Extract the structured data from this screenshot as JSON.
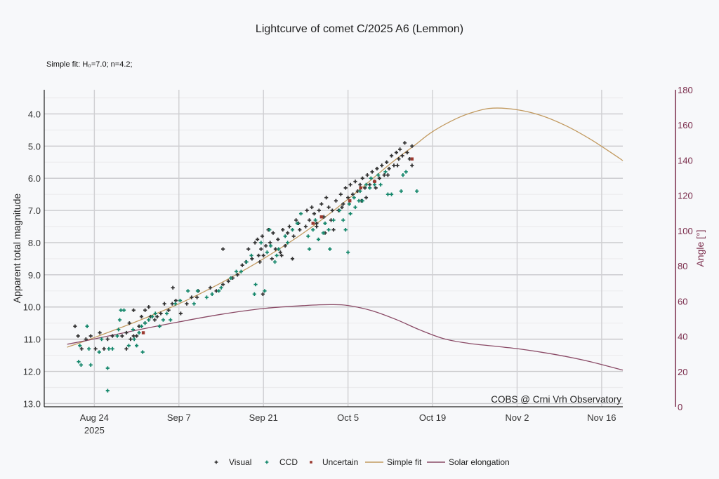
{
  "chart_data": {
    "type": "scatter",
    "title": "Lightcurve of comet C/2025 A6 (Lemmon)",
    "subtitle": "Simple fit: H₀=7.0; n=4.2;",
    "credit": "COBS @ Crni Vrh Observatory",
    "xlabel": "",
    "ylabel": "Apparent total magnitude",
    "y2label": "Angle [°]",
    "x_origin": "2025-08-24",
    "x_unit": "days since Aug 24 2025",
    "xlim_days": [
      -8.3,
      87.5
    ],
    "x_ticks": [
      {
        "day": 0,
        "label": "Aug 24",
        "sublabel": "2025"
      },
      {
        "day": 14,
        "label": "Sep 7"
      },
      {
        "day": 28,
        "label": "Sep 21"
      },
      {
        "day": 42,
        "label": "Oct 5"
      },
      {
        "day": 56,
        "label": "Oct 19"
      },
      {
        "day": 70,
        "label": "Nov 2"
      },
      {
        "day": 84,
        "label": "Nov 16"
      }
    ],
    "ylim": [
      13.1,
      3.25
    ],
    "y_inverted": true,
    "y_ticks": [
      "4.0",
      "5.0",
      "6.0",
      "7.0",
      "8.0",
      "9.0",
      "10.0",
      "11.0",
      "12.0",
      "13.0"
    ],
    "y2lim": [
      0,
      180
    ],
    "y2_ticks": [
      "0",
      "20",
      "40",
      "60",
      "80",
      "100",
      "120",
      "140",
      "160",
      "180"
    ],
    "grid": true,
    "legend_position": "bottom-center",
    "legend": [
      {
        "name": "Visual",
        "kind": "marker",
        "color": "#333333"
      },
      {
        "name": "CCD",
        "kind": "marker",
        "color": "#14876b"
      },
      {
        "name": "Uncertain",
        "kind": "marker",
        "color": "#9b3a30"
      },
      {
        "name": "Simple fit",
        "kind": "line",
        "color": "#c29a60"
      },
      {
        "name": "Solar elongation",
        "kind": "line",
        "color": "#8a4a66"
      }
    ],
    "series": [
      {
        "name": "Visual",
        "color": "#333333",
        "points": [
          [
            -3.2,
            10.6
          ],
          [
            -2.7,
            10.9
          ],
          [
            -2.1,
            11.3
          ],
          [
            -1.4,
            11.0
          ],
          [
            -0.6,
            10.9
          ],
          [
            0.2,
            11.3
          ],
          [
            0.9,
            10.8
          ],
          [
            1.6,
            11.3
          ],
          [
            2.2,
            11.0
          ],
          [
            3.0,
            10.9
          ],
          [
            4.6,
            10.9
          ],
          [
            5.3,
            10.8
          ],
          [
            5.3,
            11.3
          ],
          [
            5.8,
            10.5
          ],
          [
            6.0,
            11.0
          ],
          [
            6.5,
            10.1
          ],
          [
            6.5,
            10.9
          ],
          [
            7.0,
            10.9
          ],
          [
            7.4,
            10.6
          ],
          [
            7.8,
            10.3
          ],
          [
            8.4,
            10.1
          ],
          [
            8.4,
            10.5
          ],
          [
            9.0,
            10.0
          ],
          [
            9.3,
            10.3
          ],
          [
            10.0,
            10.4
          ],
          [
            10.4,
            10.3
          ],
          [
            11.0,
            10.2
          ],
          [
            11.6,
            9.9
          ],
          [
            12.3,
            10.1
          ],
          [
            12.9,
            9.9
          ],
          [
            13.0,
            9.4
          ],
          [
            13.5,
            9.8
          ],
          [
            14.3,
            10.2
          ],
          [
            15.3,
            9.9
          ],
          [
            16.1,
            9.7
          ],
          [
            17.0,
            9.7
          ],
          [
            17.2,
            9.5
          ],
          [
            19.2,
            9.4
          ],
          [
            20.2,
            9.5
          ],
          [
            21.3,
            9.3
          ],
          [
            21.3,
            8.2
          ],
          [
            22.2,
            9.2
          ],
          [
            22.9,
            9.1
          ],
          [
            23.7,
            9.0
          ],
          [
            24.5,
            8.7
          ],
          [
            25.1,
            8.6
          ],
          [
            25.5,
            8.2
          ],
          [
            26.1,
            8.5
          ],
          [
            26.6,
            8.0
          ],
          [
            27.0,
            7.9
          ],
          [
            27.2,
            8.4
          ],
          [
            27.4,
            8.6
          ],
          [
            27.6,
            8.2
          ],
          [
            27.8,
            7.8
          ],
          [
            28.4,
            8.1
          ],
          [
            28.8,
            7.6
          ],
          [
            29.1,
            8.0
          ],
          [
            29.4,
            8.5
          ],
          [
            29.6,
            7.7
          ],
          [
            30.0,
            8.2
          ],
          [
            30.4,
            7.9
          ],
          [
            30.8,
            8.3
          ],
          [
            31.2,
            7.6
          ],
          [
            31.6,
            8.1
          ],
          [
            32.0,
            7.7
          ],
          [
            32.3,
            7.5
          ],
          [
            33.0,
            7.8
          ],
          [
            33.4,
            7.3
          ],
          [
            34.0,
            7.6
          ],
          [
            35.2,
            7.0
          ],
          [
            35.6,
            7.3
          ],
          [
            36.0,
            6.9
          ],
          [
            36.4,
            7.1
          ],
          [
            36.8,
            7.4
          ],
          [
            37.2,
            7.0
          ],
          [
            37.6,
            6.8
          ],
          [
            38.0,
            7.2
          ],
          [
            38.4,
            6.6
          ],
          [
            38.8,
            6.9
          ],
          [
            39.2,
            7.3
          ],
          [
            39.6,
            7.6
          ],
          [
            40.0,
            6.7
          ],
          [
            40.4,
            7.0
          ],
          [
            40.8,
            6.5
          ],
          [
            41.2,
            6.8
          ],
          [
            41.6,
            6.3
          ],
          [
            42.0,
            6.6
          ],
          [
            42.4,
            6.2
          ],
          [
            42.8,
            6.5
          ],
          [
            43.2,
            6.1
          ],
          [
            43.6,
            6.4
          ],
          [
            44.0,
            6.2
          ],
          [
            44.4,
            6.0
          ],
          [
            44.8,
            6.3
          ],
          [
            45.2,
            5.9
          ],
          [
            45.6,
            6.2
          ],
          [
            46.0,
            5.8
          ],
          [
            46.4,
            6.1
          ],
          [
            46.8,
            5.7
          ],
          [
            47.2,
            6.0
          ],
          [
            47.6,
            5.6
          ],
          [
            48.0,
            5.9
          ],
          [
            48.4,
            5.5
          ],
          [
            48.8,
            5.7
          ],
          [
            49.2,
            5.3
          ],
          [
            49.6,
            5.6
          ],
          [
            50.0,
            5.2
          ],
          [
            50.4,
            5.4
          ],
          [
            50.6,
            5.1
          ],
          [
            51.0,
            5.3
          ],
          [
            51.4,
            4.9
          ],
          [
            51.8,
            5.2
          ],
          [
            52.2,
            5.4
          ],
          [
            52.6,
            5.0
          ],
          [
            52.6,
            5.6
          ],
          [
            36.8,
            7.5
          ],
          [
            35.0,
            7.5
          ],
          [
            33.8,
            7.4
          ],
          [
            32.8,
            8.5
          ],
          [
            31.0,
            8.4
          ],
          [
            28.0,
            8.4
          ],
          [
            27.9,
            9.6
          ],
          [
            44.2,
            6.7
          ],
          [
            45.0,
            6.6
          ],
          [
            46.6,
            6.3
          ],
          [
            48.6,
            5.9
          ],
          [
            50.2,
            5.6
          ],
          [
            39.4,
            7.0
          ],
          [
            38.2,
            7.7
          ],
          [
            41.0,
            6.9
          ]
        ]
      },
      {
        "name": "CCD",
        "color": "#14876b",
        "points": [
          [
            -2.6,
            11.7
          ],
          [
            -2.4,
            11.2
          ],
          [
            -2.2,
            11.8
          ],
          [
            -1.2,
            10.6
          ],
          [
            -0.9,
            11.3
          ],
          [
            -0.6,
            11.8
          ],
          [
            0.8,
            11.4
          ],
          [
            1.2,
            11.0
          ],
          [
            2.2,
            11.9
          ],
          [
            2.2,
            12.6
          ],
          [
            2.4,
            11.3
          ],
          [
            3.0,
            11.3
          ],
          [
            3.8,
            10.9
          ],
          [
            4.0,
            10.7
          ],
          [
            4.2,
            10.4
          ],
          [
            4.4,
            10.1
          ],
          [
            4.9,
            10.1
          ],
          [
            5.7,
            11.2
          ],
          [
            6.4,
            10.7
          ],
          [
            6.6,
            11.0
          ],
          [
            7.0,
            11.2
          ],
          [
            7.4,
            10.8
          ],
          [
            7.8,
            10.6
          ],
          [
            8.0,
            11.4
          ],
          [
            8.4,
            10.5
          ],
          [
            9.0,
            10.4
          ],
          [
            9.6,
            10.3
          ],
          [
            10.1,
            10.2
          ],
          [
            10.8,
            10.6
          ],
          [
            11.4,
            10.4
          ],
          [
            12.0,
            10.2
          ],
          [
            12.6,
            10.4
          ],
          [
            13.4,
            9.9
          ],
          [
            14.2,
            9.8
          ],
          [
            15.5,
            9.5
          ],
          [
            16.5,
            9.9
          ],
          [
            17.1,
            9.5
          ],
          [
            18.6,
            9.7
          ],
          [
            19.5,
            9.6
          ],
          [
            20.6,
            9.5
          ],
          [
            21.0,
            9.4
          ],
          [
            22.6,
            9.1
          ],
          [
            23.5,
            8.9
          ],
          [
            24.3,
            8.9
          ],
          [
            25.2,
            8.6
          ],
          [
            26.0,
            8.4
          ],
          [
            26.5,
            9.6
          ],
          [
            26.7,
            9.3
          ],
          [
            27.6,
            8.0
          ],
          [
            28.2,
            9.5
          ],
          [
            28.6,
            8.3
          ],
          [
            29.0,
            7.6
          ],
          [
            29.2,
            8.1
          ],
          [
            29.9,
            8.6
          ],
          [
            30.2,
            8.4
          ],
          [
            30.5,
            8.2
          ],
          [
            31.6,
            7.8
          ],
          [
            32.0,
            8.0
          ],
          [
            32.8,
            7.6
          ],
          [
            33.6,
            7.4
          ],
          [
            34.2,
            7.1
          ],
          [
            35.4,
            7.8
          ],
          [
            35.6,
            8.2
          ],
          [
            36.2,
            7.6
          ],
          [
            36.6,
            7.3
          ],
          [
            37.1,
            7.9
          ],
          [
            37.9,
            7.7
          ],
          [
            38.2,
            7.4
          ],
          [
            38.8,
            7.6
          ],
          [
            39.0,
            8.2
          ],
          [
            39.6,
            7.3
          ],
          [
            40.6,
            7.0
          ],
          [
            41.2,
            7.3
          ],
          [
            41.6,
            7.6
          ],
          [
            42.0,
            8.3
          ],
          [
            42.2,
            6.8
          ],
          [
            42.4,
            7.1
          ],
          [
            43.0,
            6.6
          ],
          [
            43.2,
            6.9
          ],
          [
            44.0,
            6.4
          ],
          [
            44.4,
            6.7
          ],
          [
            45.0,
            6.2
          ],
          [
            45.6,
            6.3
          ],
          [
            46.4,
            6.2
          ],
          [
            47.0,
            5.9
          ],
          [
            47.4,
            6.2
          ],
          [
            48.6,
            6.5
          ],
          [
            49.2,
            6.5
          ],
          [
            50.8,
            6.4
          ],
          [
            51.1,
            5.9
          ],
          [
            51.6,
            5.8
          ],
          [
            53.4,
            6.4
          ],
          [
            48.2,
            5.8
          ],
          [
            45.8,
            6.0
          ],
          [
            43.8,
            6.7
          ]
        ]
      },
      {
        "name": "Uncertain",
        "color": "#9b3a30",
        "points": [
          [
            8.1,
            10.8
          ],
          [
            36.2,
            7.4
          ],
          [
            37.6,
            7.2
          ],
          [
            42.3,
            6.7
          ],
          [
            44.1,
            6.3
          ],
          [
            46.4,
            6.1
          ],
          [
            52.6,
            5.4
          ]
        ]
      },
      {
        "name": "Simple fit",
        "color": "#c29a60",
        "axis": "left",
        "points": [
          [
            -4.5,
            11.25
          ],
          [
            0,
            10.95
          ],
          [
            7,
            10.45
          ],
          [
            14,
            9.9
          ],
          [
            21,
            9.25
          ],
          [
            28,
            8.5
          ],
          [
            35,
            7.65
          ],
          [
            42,
            6.65
          ],
          [
            49,
            5.55
          ],
          [
            53,
            4.98
          ],
          [
            56,
            4.55
          ],
          [
            60,
            4.14
          ],
          [
            63,
            3.93
          ],
          [
            66,
            3.82
          ],
          [
            70,
            3.87
          ],
          [
            74,
            4.05
          ],
          [
            78,
            4.36
          ],
          [
            82,
            4.77
          ],
          [
            86,
            5.26
          ],
          [
            87.5,
            5.45
          ]
        ]
      },
      {
        "name": "Solar elongation",
        "color": "#8a4a66",
        "axis": "right",
        "points": [
          [
            -4.5,
            35.5
          ],
          [
            0,
            38.5
          ],
          [
            7,
            43.5
          ],
          [
            14,
            48.2
          ],
          [
            21,
            52.5
          ],
          [
            28,
            55.8
          ],
          [
            35,
            57.5
          ],
          [
            39,
            58.0
          ],
          [
            42,
            57.5
          ],
          [
            46,
            54.5
          ],
          [
            50,
            49.5
          ],
          [
            54,
            43.5
          ],
          [
            58,
            38.5
          ],
          [
            62,
            36.0
          ],
          [
            66,
            34.5
          ],
          [
            70,
            33.0
          ],
          [
            74,
            31.0
          ],
          [
            78,
            28.6
          ],
          [
            82,
            25.7
          ],
          [
            87.5,
            20.8
          ]
        ]
      }
    ]
  }
}
